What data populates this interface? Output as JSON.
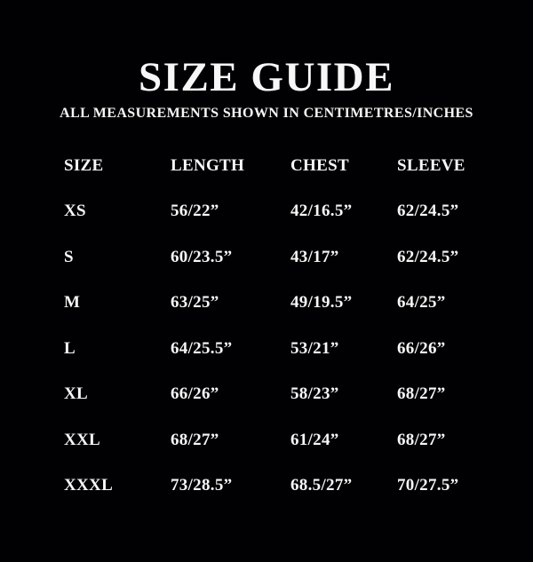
{
  "page": {
    "background_color": "#010104",
    "text_color": "#f7f7f7"
  },
  "header": {
    "title": "SIZE GUIDE",
    "subtitle": "ALL MEASUREMENTS SHOWN IN CENTIMETRES/INCHES"
  },
  "table": {
    "columns": [
      "SIZE",
      "LENGTH",
      "CHEST",
      "SLEEVE"
    ],
    "rows": [
      {
        "size": "XS",
        "length": "56/22”",
        "chest": "42/16.5”",
        "sleeve": "62/24.5”"
      },
      {
        "size": "S",
        "length": "60/23.5”",
        "chest": "43/17”",
        "sleeve": "62/24.5”"
      },
      {
        "size": "M",
        "length": "63/25”",
        "chest": "49/19.5”",
        "sleeve": "64/25”"
      },
      {
        "size": "L",
        "length": "64/25.5”",
        "chest": "53/21”",
        "sleeve": "66/26”"
      },
      {
        "size": "XL",
        "length": "66/26”",
        "chest": "58/23”",
        "sleeve": "68/27”"
      },
      {
        "size": "XXL",
        "length": "68/27”",
        "chest": "61/24”",
        "sleeve": "68/27”"
      },
      {
        "size": "XXXL",
        "length": "73/28.5”",
        "chest": "68.5/27”",
        "sleeve": "70/27.5”"
      }
    ]
  }
}
